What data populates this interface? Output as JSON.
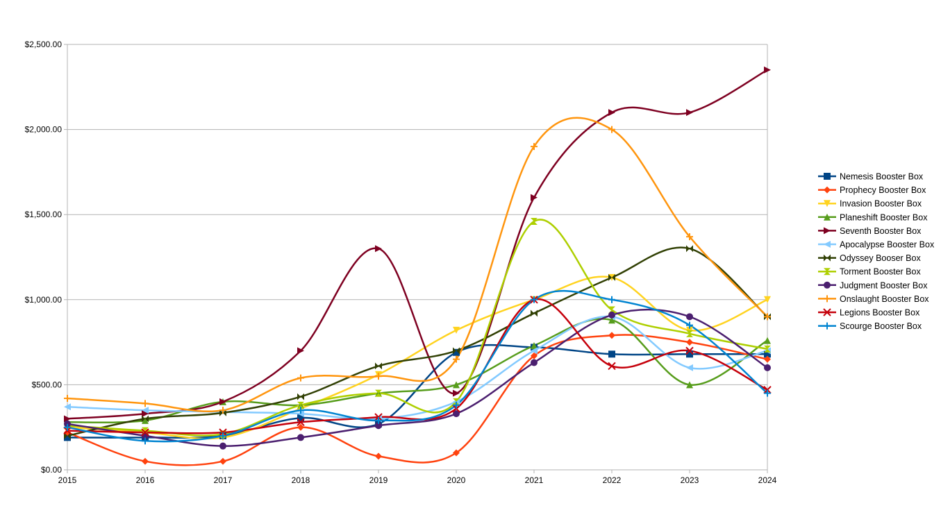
{
  "chart_data": {
    "type": "line",
    "title": "",
    "xlabel": "",
    "ylabel": "",
    "x": [
      2015,
      2016,
      2017,
      2018,
      2019,
      2020,
      2021,
      2022,
      2023,
      2024
    ],
    "x_tick_labels": [
      "2015",
      "2016",
      "2017",
      "2018",
      "2019",
      "2020",
      "2021",
      "2022",
      "2023",
      "2024"
    ],
    "ylim": [
      0,
      2500
    ],
    "y_ticks": [
      0,
      500,
      1000,
      1500,
      2000,
      2500
    ],
    "y_tick_labels": [
      "$0.00",
      "$500.00",
      "$1,000.00",
      "$1,500.00",
      "$2,000.00",
      "$2,500.00"
    ],
    "grid": "horizontal",
    "smooth": true,
    "legend_position": "right",
    "series": [
      {
        "name": "Nemesis Booster Box",
        "color": "#004586",
        "marker": "square",
        "values": [
          190,
          190,
          200,
          305,
          270,
          690,
          720,
          680,
          680,
          680
        ]
      },
      {
        "name": "Prophecy Booster Box",
        "color": "#ff420e",
        "marker": "diamond",
        "values": [
          220,
          50,
          50,
          250,
          80,
          100,
          670,
          790,
          750,
          650
        ]
      },
      {
        "name": "Invasion Booster Box",
        "color": "#ffd320",
        "marker": "triangle-down",
        "values": [
          250,
          220,
          190,
          360,
          560,
          820,
          1000,
          1130,
          820,
          1000
        ]
      },
      {
        "name": "Planeshift Booster Box",
        "color": "#579d1c",
        "marker": "triangle-up",
        "values": [
          280,
          290,
          400,
          380,
          450,
          500,
          730,
          880,
          500,
          760
        ]
      },
      {
        "name": "Seventh Booster Box",
        "color": "#7e0021",
        "marker": "triangle-right",
        "values": [
          300,
          330,
          400,
          700,
          1300,
          450,
          1600,
          2100,
          2100,
          2350
        ]
      },
      {
        "name": "Apocalypse Booster Box",
        "color": "#83caff",
        "marker": "triangle-left",
        "values": [
          370,
          350,
          340,
          330,
          300,
          400,
          700,
          900,
          600,
          700
        ]
      },
      {
        "name": "Odyssey Booser Box",
        "color": "#314004",
        "marker": "bowtie",
        "values": [
          200,
          300,
          335,
          430,
          610,
          700,
          920,
          1130,
          1300,
          900
        ]
      },
      {
        "name": "Torment Booster Box",
        "color": "#aecf00",
        "marker": "hourglass",
        "values": [
          260,
          230,
          210,
          380,
          450,
          400,
          1460,
          940,
          800,
          710
        ]
      },
      {
        "name": "Judgment Booster Box",
        "color": "#4b1f6f",
        "marker": "circle",
        "values": [
          270,
          200,
          140,
          190,
          260,
          330,
          630,
          910,
          900,
          600
        ]
      },
      {
        "name": "Onslaught Booster Box",
        "color": "#ff950e",
        "marker": "plus",
        "values": [
          420,
          390,
          350,
          540,
          550,
          650,
          1900,
          2000,
          1370,
          900
        ]
      },
      {
        "name": "Legions Booster Box",
        "color": "#c5000b",
        "marker": "x",
        "values": [
          230,
          220,
          220,
          280,
          310,
          360,
          1000,
          610,
          700,
          470
        ]
      },
      {
        "name": "Scourge Booster Box",
        "color": "#0084d1",
        "marker": "plus",
        "values": [
          250,
          170,
          200,
          350,
          290,
          380,
          1000,
          1000,
          850,
          450
        ]
      }
    ]
  }
}
